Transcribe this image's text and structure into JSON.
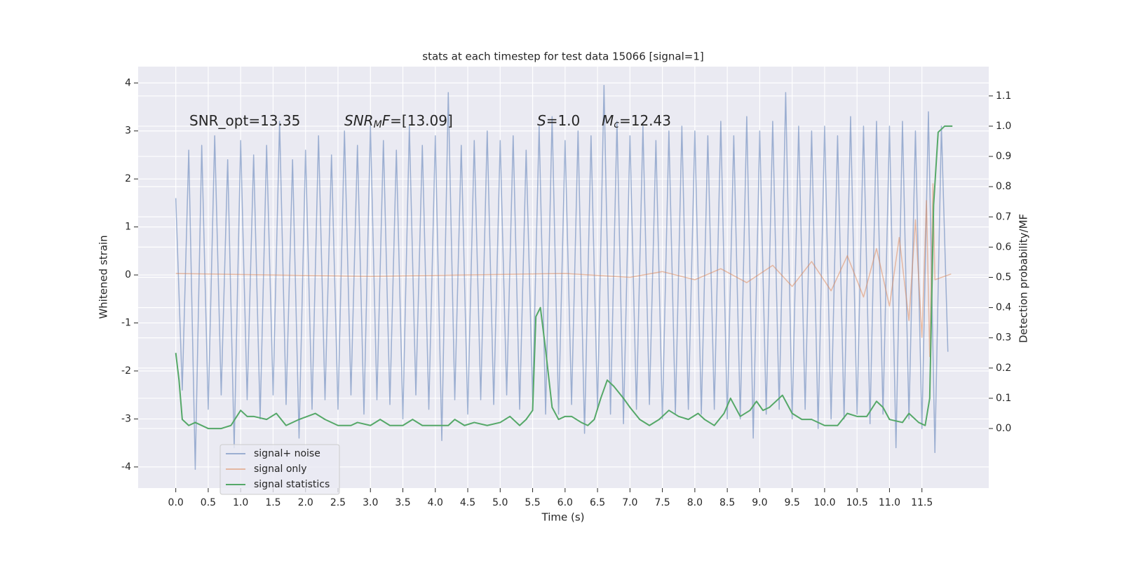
{
  "chart_data": {
    "type": "line",
    "title": "stats at each timestep for test data 15066 [signal=1]",
    "xlabel": "Time (s)",
    "ylabel": "Whitened strain",
    "y2label": "Detection probability/MF",
    "xlim": [
      -0.58,
      12.53
    ],
    "xticks": [
      {
        "value": 0,
        "label": "0.0"
      },
      0.5,
      {
        "value": 1,
        "label": "1.0"
      },
      1.5,
      {
        "value": 2,
        "label": "2.0"
      },
      2.5,
      {
        "value": 3,
        "label": "3.0"
      },
      3.5,
      {
        "value": 4,
        "label": "4.0"
      },
      4.5,
      {
        "value": 5,
        "label": "5.0"
      },
      5.5,
      {
        "value": 6,
        "label": "6.0"
      },
      6.5,
      {
        "value": 7,
        "label": "7.0"
      },
      7.5,
      {
        "value": 8,
        "label": "8.0"
      },
      8.5,
      {
        "value": 9,
        "label": "9.0"
      },
      9.5,
      {
        "value": 10,
        "label": "10.0"
      },
      10.5,
      {
        "value": 11,
        "label": "11.0"
      },
      11.5
    ],
    "ylim": [
      -4.44,
      4.34
    ],
    "yticks": [
      -4,
      -3,
      -2,
      -1,
      0,
      1,
      2,
      3,
      4
    ],
    "y2lim": [
      -0.197,
      1.197
    ],
    "y2ticks": [
      {
        "value": 0,
        "label": "0.0"
      },
      0.1,
      0.2,
      0.3,
      0.4,
      0.5,
      0.6,
      0.7,
      0.8,
      0.9,
      {
        "value": 1,
        "label": "1.0"
      },
      1.1
    ],
    "grid": true,
    "legend": "lower left",
    "annotations": [
      [
        {
          "text": "SNR_opt=13.35"
        }
      ],
      [
        {
          "text": "SNR",
          "style": "italic"
        },
        {
          "text": "M",
          "style": "sub"
        },
        {
          "text": "F",
          "style": "italic"
        },
        {
          "text": "=[13.09]"
        }
      ],
      [
        {
          "text": "S",
          "style": "italic"
        },
        {
          "text": "=1.0"
        }
      ],
      [
        {
          "text": "M",
          "style": "italic"
        },
        {
          "text": "c",
          "style": "sub"
        },
        {
          "text": "=12.43"
        }
      ]
    ],
    "series": [
      {
        "name": "signal+ noise",
        "color": "#4c72b0",
        "alpha": 0.5,
        "x": [
          0.0,
          0.1,
          0.2,
          0.3,
          0.4,
          0.5,
          0.6,
          0.7,
          0.8,
          0.9,
          1.0,
          1.1,
          1.2,
          1.3,
          1.4,
          1.5,
          1.6,
          1.7,
          1.8,
          1.9,
          2.0,
          2.1,
          2.2,
          2.3,
          2.4,
          2.5,
          2.6,
          2.7,
          2.8,
          2.9,
          3.0,
          3.1,
          3.2,
          3.3,
          3.4,
          3.5,
          3.6,
          3.7,
          3.8,
          3.9,
          4.0,
          4.1,
          4.2,
          4.3,
          4.4,
          4.5,
          4.6,
          4.7,
          4.8,
          4.9,
          5.0,
          5.1,
          5.2,
          5.3,
          5.4,
          5.5,
          5.6,
          5.7,
          5.8,
          5.9,
          6.0,
          6.1,
          6.2,
          6.3,
          6.4,
          6.5,
          6.6,
          6.7,
          6.8,
          6.9,
          7.0,
          7.1,
          7.2,
          7.3,
          7.4,
          7.5,
          7.6,
          7.7,
          7.8,
          7.9,
          8.0,
          8.1,
          8.2,
          8.3,
          8.4,
          8.5,
          8.6,
          8.7,
          8.8,
          8.9,
          9.0,
          9.1,
          9.2,
          9.3,
          9.4,
          9.5,
          9.6,
          9.7,
          9.8,
          9.9,
          10.0,
          10.1,
          10.2,
          10.3,
          10.4,
          10.5,
          10.6,
          10.7,
          10.8,
          10.9,
          11.0,
          11.1,
          11.2,
          11.3,
          11.4,
          11.5,
          11.6,
          11.7,
          11.8,
          11.9
        ],
        "values": [
          1.6,
          -2.4,
          2.6,
          -4.05,
          2.7,
          -2.8,
          2.9,
          -2.5,
          2.4,
          -3.6,
          2.8,
          -2.6,
          2.5,
          -3.0,
          2.7,
          -2.5,
          3.2,
          -2.7,
          2.4,
          -3.4,
          2.6,
          -2.8,
          2.9,
          -2.6,
          2.5,
          -2.8,
          3.0,
          -2.5,
          2.7,
          -2.9,
          3.1,
          -2.6,
          2.8,
          -2.7,
          2.6,
          -3.0,
          3.1,
          -2.5,
          2.7,
          -2.8,
          2.9,
          -3.45,
          3.8,
          -2.6,
          2.7,
          -2.9,
          2.8,
          -2.6,
          3.0,
          -2.7,
          2.8,
          -2.5,
          2.9,
          -2.8,
          2.6,
          -2.6,
          3.1,
          -2.9,
          3.3,
          -2.9,
          2.8,
          -2.7,
          3.0,
          -3.3,
          2.9,
          -2.8,
          3.95,
          -2.9,
          3.2,
          -3.1,
          2.9,
          -2.8,
          3.1,
          -2.7,
          2.8,
          -3.0,
          3.0,
          -2.9,
          3.1,
          -2.8,
          3.0,
          -2.9,
          2.9,
          -2.8,
          3.2,
          -3.0,
          2.9,
          -3.0,
          3.3,
          -3.4,
          3.0,
          -2.9,
          3.2,
          -2.8,
          3.8,
          -3.0,
          3.1,
          -2.8,
          3.0,
          -3.2,
          3.1,
          -3.0,
          2.9,
          -3.0,
          3.3,
          -2.9,
          3.1,
          -3.1,
          3.2,
          -2.9,
          3.1,
          -3.6,
          3.2,
          -3.0,
          3.0,
          -3.2,
          3.4,
          -3.7,
          3.1,
          -1.6
        ]
      },
      {
        "name": "signal only",
        "color": "#dd8452",
        "alpha": 0.5,
        "x": [
          0.0,
          3.0,
          6.0,
          7.0,
          7.5,
          8.0,
          8.4,
          8.8,
          9.2,
          9.5,
          9.8,
          10.1,
          10.35,
          10.6,
          10.8,
          11.0,
          11.15,
          11.3,
          11.4,
          11.5,
          11.57,
          11.62,
          11.67,
          11.7,
          11.95
        ],
        "values": [
          0.03,
          -0.03,
          0.03,
          -0.05,
          0.07,
          -0.1,
          0.13,
          -0.16,
          0.2,
          -0.24,
          0.28,
          -0.33,
          0.4,
          -0.46,
          0.55,
          -0.65,
          0.78,
          -0.95,
          1.15,
          -1.3,
          1.55,
          -1.7,
          1.9,
          -0.1,
          0.02
        ]
      },
      {
        "name": "signal statistics",
        "color": "#55a868",
        "axis": "y2",
        "x": [
          0.0,
          0.05,
          0.1,
          0.2,
          0.3,
          0.5,
          0.7,
          0.85,
          1.0,
          1.1,
          1.2,
          1.4,
          1.55,
          1.7,
          1.9,
          2.15,
          2.3,
          2.5,
          2.7,
          2.8,
          3.0,
          3.15,
          3.3,
          3.5,
          3.65,
          3.8,
          4.0,
          4.2,
          4.3,
          4.45,
          4.6,
          4.8,
          5.0,
          5.15,
          5.3,
          5.4,
          5.5,
          5.55,
          5.62,
          5.7,
          5.8,
          5.9,
          6.0,
          6.1,
          6.25,
          6.35,
          6.45,
          6.55,
          6.65,
          6.75,
          6.9,
          7.0,
          7.15,
          7.3,
          7.45,
          7.6,
          7.75,
          7.9,
          8.05,
          8.15,
          8.3,
          8.45,
          8.55,
          8.7,
          8.85,
          8.95,
          9.05,
          9.15,
          9.3,
          9.35,
          9.5,
          9.65,
          9.8,
          10.0,
          10.2,
          10.35,
          10.5,
          10.65,
          10.8,
          10.9,
          11.0,
          11.2,
          11.3,
          11.45,
          11.55,
          11.62,
          11.68,
          11.75,
          11.85,
          11.97
        ],
        "values": [
          0.25,
          0.16,
          0.03,
          0.01,
          0.02,
          0.0,
          0.0,
          0.01,
          0.06,
          0.04,
          0.04,
          0.03,
          0.05,
          0.01,
          0.03,
          0.05,
          0.03,
          0.01,
          0.01,
          0.02,
          0.01,
          0.03,
          0.01,
          0.01,
          0.03,
          0.01,
          0.01,
          0.01,
          0.03,
          0.01,
          0.02,
          0.01,
          0.02,
          0.04,
          0.01,
          0.03,
          0.06,
          0.37,
          0.4,
          0.26,
          0.07,
          0.03,
          0.04,
          0.04,
          0.02,
          0.01,
          0.03,
          0.1,
          0.16,
          0.14,
          0.1,
          0.07,
          0.03,
          0.01,
          0.03,
          0.06,
          0.04,
          0.03,
          0.05,
          0.03,
          0.01,
          0.05,
          0.1,
          0.04,
          0.06,
          0.09,
          0.06,
          0.07,
          0.1,
          0.11,
          0.05,
          0.03,
          0.03,
          0.01,
          0.01,
          0.05,
          0.04,
          0.04,
          0.09,
          0.07,
          0.03,
          0.02,
          0.05,
          0.02,
          0.01,
          0.1,
          0.74,
          0.98,
          1.0,
          1.0
        ]
      }
    ]
  }
}
